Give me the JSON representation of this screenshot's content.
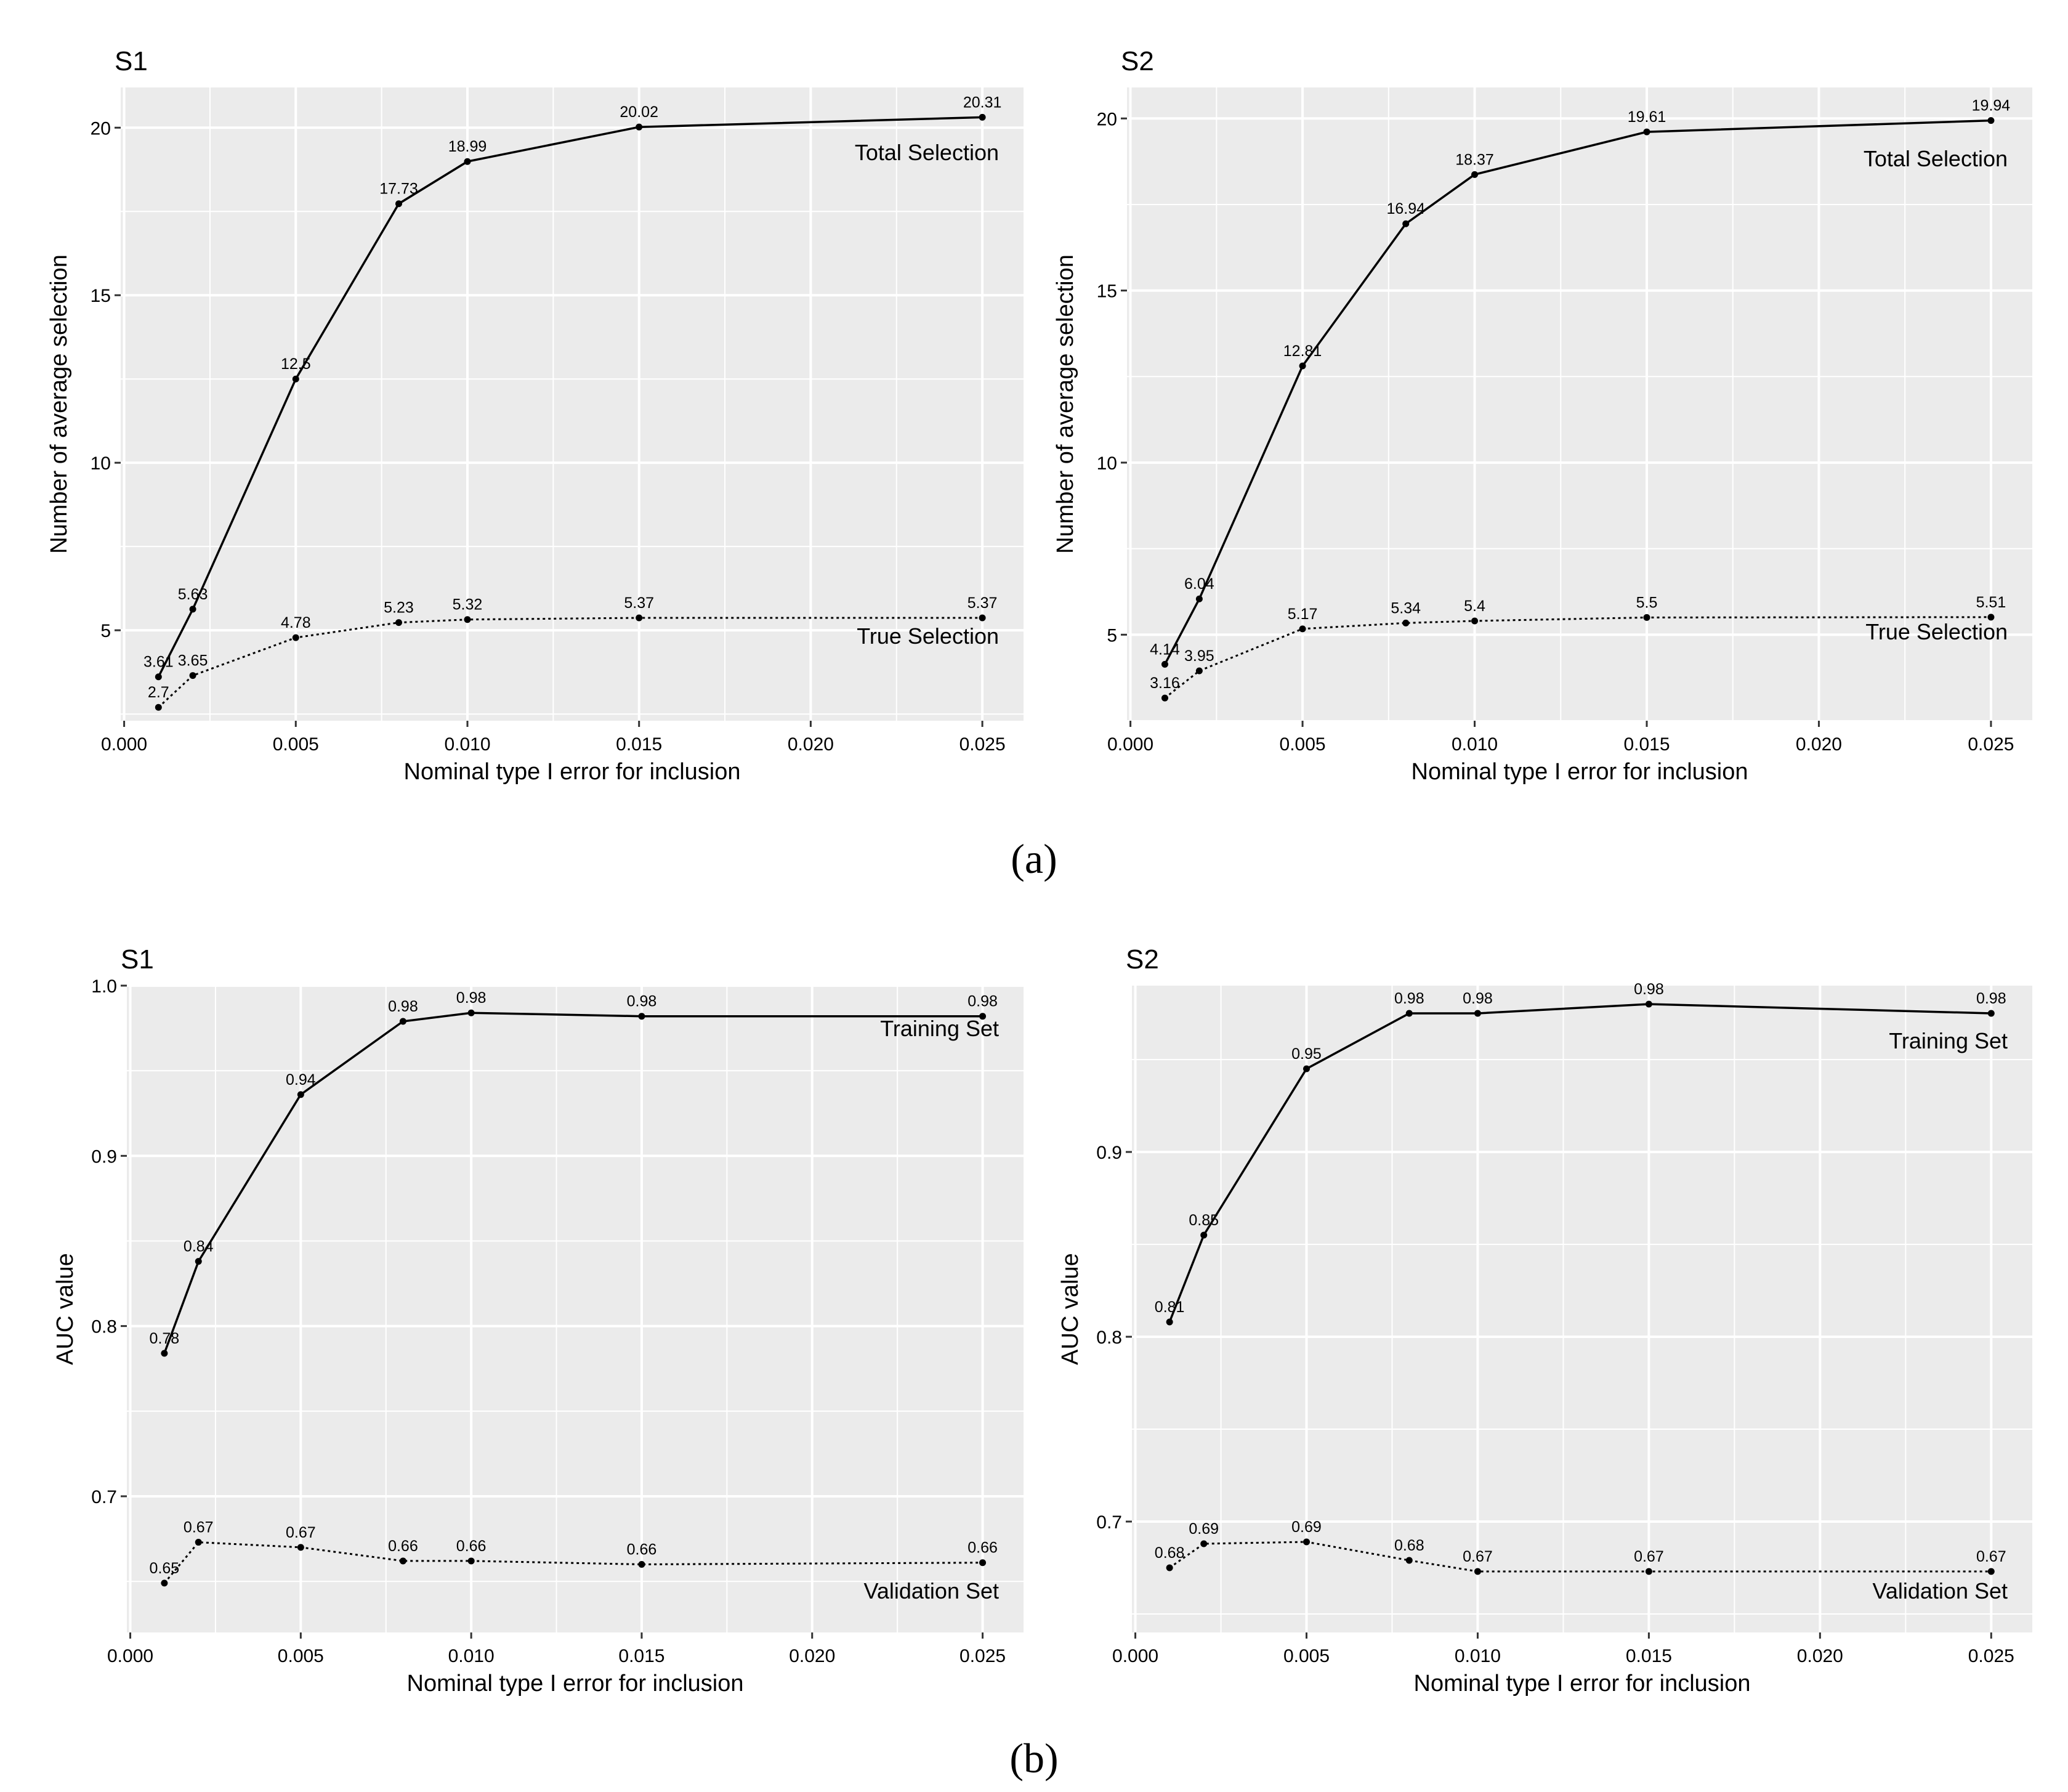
{
  "figure": {
    "subfigure_labels": [
      "(a)",
      "(b)"
    ]
  },
  "chart_data": [
    {
      "type": "line",
      "panel_title": "S1",
      "xlabel": "Nominal type I error for inclusion",
      "ylabel": "Number of average selection",
      "x": [
        0.001,
        0.002,
        0.005,
        0.008,
        0.01,
        0.015,
        0.025
      ],
      "xlim": [
        -0.0001,
        0.0262
      ],
      "ylim": [
        2.3,
        21.2
      ],
      "xticks": [
        0.0,
        0.005,
        0.01,
        0.015,
        0.02,
        0.025
      ],
      "xtick_labels": [
        "0.000",
        "0.005",
        "0.010",
        "0.015",
        "0.020",
        "0.025"
      ],
      "yticks": [
        5,
        10,
        15,
        20
      ],
      "ytick_labels": [
        "5",
        "10",
        "15",
        "20"
      ],
      "grid": true,
      "series": [
        {
          "name": "Total Selection",
          "line": "solid",
          "values": [
            3.61,
            5.63,
            12.5,
            17.73,
            18.99,
            20.02,
            20.31
          ],
          "labels": [
            "3.61",
            "5.63",
            "12.5",
            "17.73",
            "18.99",
            "20.02",
            "20.31"
          ]
        },
        {
          "name": "True Selection",
          "line": "dotted",
          "values": [
            2.7,
            3.65,
            4.78,
            5.23,
            5.32,
            5.37,
            5.37
          ],
          "labels": [
            "2.7",
            "3.65",
            "4.78",
            "5.23",
            "5.32",
            "5.37",
            "5.37"
          ]
        }
      ]
    },
    {
      "type": "line",
      "panel_title": "S2",
      "xlabel": "Nominal type I error for inclusion",
      "ylabel": "Number of average selection",
      "x": [
        0.001,
        0.002,
        0.005,
        0.008,
        0.01,
        0.015,
        0.025
      ],
      "xlim": [
        -0.0001,
        0.0262
      ],
      "ylim": [
        2.5,
        20.9
      ],
      "xticks": [
        0.0,
        0.005,
        0.01,
        0.015,
        0.02,
        0.025
      ],
      "xtick_labels": [
        "0.000",
        "0.005",
        "0.010",
        "0.015",
        "0.020",
        "0.025"
      ],
      "yticks": [
        5,
        10,
        15,
        20
      ],
      "ytick_labels": [
        "5",
        "10",
        "15",
        "20"
      ],
      "grid": true,
      "series": [
        {
          "name": "Total Selection",
          "line": "solid",
          "values": [
            4.14,
            6.04,
            12.81,
            16.94,
            18.37,
            19.61,
            19.94
          ],
          "labels": [
            "4.14",
            "6.04",
            "12.81",
            "16.94",
            "18.37",
            "19.61",
            "19.94"
          ]
        },
        {
          "name": "True Selection",
          "line": "dotted",
          "values": [
            3.16,
            3.95,
            5.17,
            5.34,
            5.4,
            5.5,
            5.51
          ],
          "labels": [
            "3.16",
            "3.95",
            "5.17",
            "5.34",
            "5.4",
            "5.5",
            "5.51"
          ]
        }
      ]
    },
    {
      "type": "line",
      "panel_title": "S1",
      "xlabel": "Nominal type I error for inclusion",
      "ylabel": "AUC value",
      "x": [
        0.001,
        0.002,
        0.005,
        0.008,
        0.01,
        0.015,
        0.025
      ],
      "xlim": [
        -0.0001,
        0.0262
      ],
      "ylim": [
        0.62,
        1.0
      ],
      "xticks": [
        0.0,
        0.005,
        0.01,
        0.015,
        0.02,
        0.025
      ],
      "xtick_labels": [
        "0.000",
        "0.005",
        "0.010",
        "0.015",
        "0.020",
        "0.025"
      ],
      "yticks": [
        0.7,
        0.8,
        0.9,
        1.0
      ],
      "ytick_labels": [
        "0.7",
        "0.8",
        "0.9",
        "1.0"
      ],
      "grid": true,
      "series": [
        {
          "name": "Training Set",
          "line": "solid",
          "values": [
            0.784,
            0.838,
            0.936,
            0.979,
            0.984,
            0.982,
            0.982
          ],
          "labels": [
            "0.78",
            "0.84",
            "0.94",
            "0.98",
            "0.98",
            "0.98",
            "0.98"
          ]
        },
        {
          "name": "Validation Set",
          "line": "dotted",
          "values": [
            0.649,
            0.673,
            0.67,
            0.662,
            0.662,
            0.66,
            0.661
          ],
          "labels": [
            "0.65",
            "0.67",
            "0.67",
            "0.66",
            "0.66",
            "0.66",
            "0.66"
          ]
        }
      ]
    },
    {
      "type": "line",
      "panel_title": "S2",
      "xlabel": "Nominal type I error for inclusion",
      "ylabel": "AUC value",
      "x": [
        0.001,
        0.002,
        0.005,
        0.008,
        0.01,
        0.015,
        0.025
      ],
      "xlim": [
        -0.0001,
        0.0262
      ],
      "ylim": [
        0.64,
        0.99
      ],
      "xticks": [
        0.0,
        0.005,
        0.01,
        0.015,
        0.02,
        0.025
      ],
      "xtick_labels": [
        "0.000",
        "0.005",
        "0.010",
        "0.015",
        "0.020",
        "0.025"
      ],
      "yticks": [
        0.7,
        0.8,
        0.9
      ],
      "ytick_labels": [
        "0.7",
        "0.8",
        "0.9"
      ],
      "grid": true,
      "series": [
        {
          "name": "Training Set",
          "line": "solid",
          "values": [
            0.808,
            0.855,
            0.945,
            0.975,
            0.975,
            0.98,
            0.975
          ],
          "labels": [
            "0.81",
            "0.85",
            "0.95",
            "0.98",
            "0.98",
            "0.98",
            "0.98"
          ]
        },
        {
          "name": "Validation Set",
          "line": "dotted",
          "values": [
            0.675,
            0.688,
            0.689,
            0.679,
            0.673,
            0.673,
            0.673
          ],
          "labels": [
            "0.68",
            "0.69",
            "0.69",
            "0.68",
            "0.67",
            "0.67",
            "0.67"
          ]
        }
      ]
    }
  ]
}
